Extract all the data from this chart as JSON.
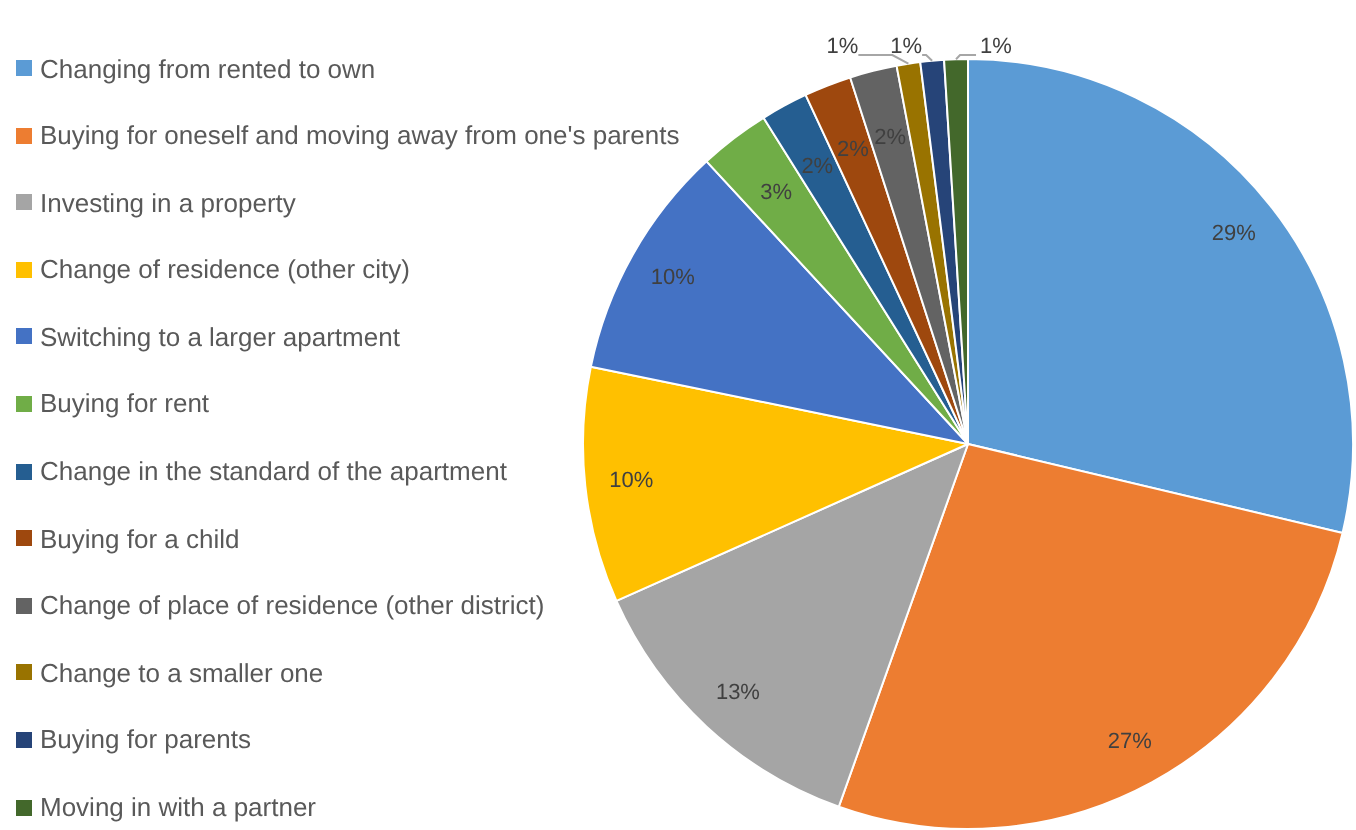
{
  "chart_data": {
    "type": "pie",
    "legend": "left",
    "categories": [
      "Changing from rented to own",
      "Buying for oneself and moving away from one's parents",
      "Investing in a property",
      "Change of residence (other city)",
      "Switching to a larger apartment",
      "Buying for rent",
      "Change in the standard of the apartment",
      "Buying for a child",
      "Change of place of residence (other district)",
      "Change to a smaller one",
      "Buying for parents",
      "Moving in with a partner"
    ],
    "values": [
      29,
      27,
      13,
      10,
      10,
      3,
      2,
      2,
      2,
      1,
      1,
      1
    ],
    "value_labels": [
      "29%",
      "27%",
      "13%",
      "10%",
      "10%",
      "3%",
      "2%",
      "2%",
      "2%",
      "1%",
      "1%",
      "1%"
    ],
    "colors": [
      "#5b9bd5",
      "#ed7d31",
      "#a5a5a5",
      "#ffc000",
      "#4472c4",
      "#70ad47",
      "#255e91",
      "#9e480e",
      "#636363",
      "#997300",
      "#264478",
      "#43682b"
    ]
  }
}
